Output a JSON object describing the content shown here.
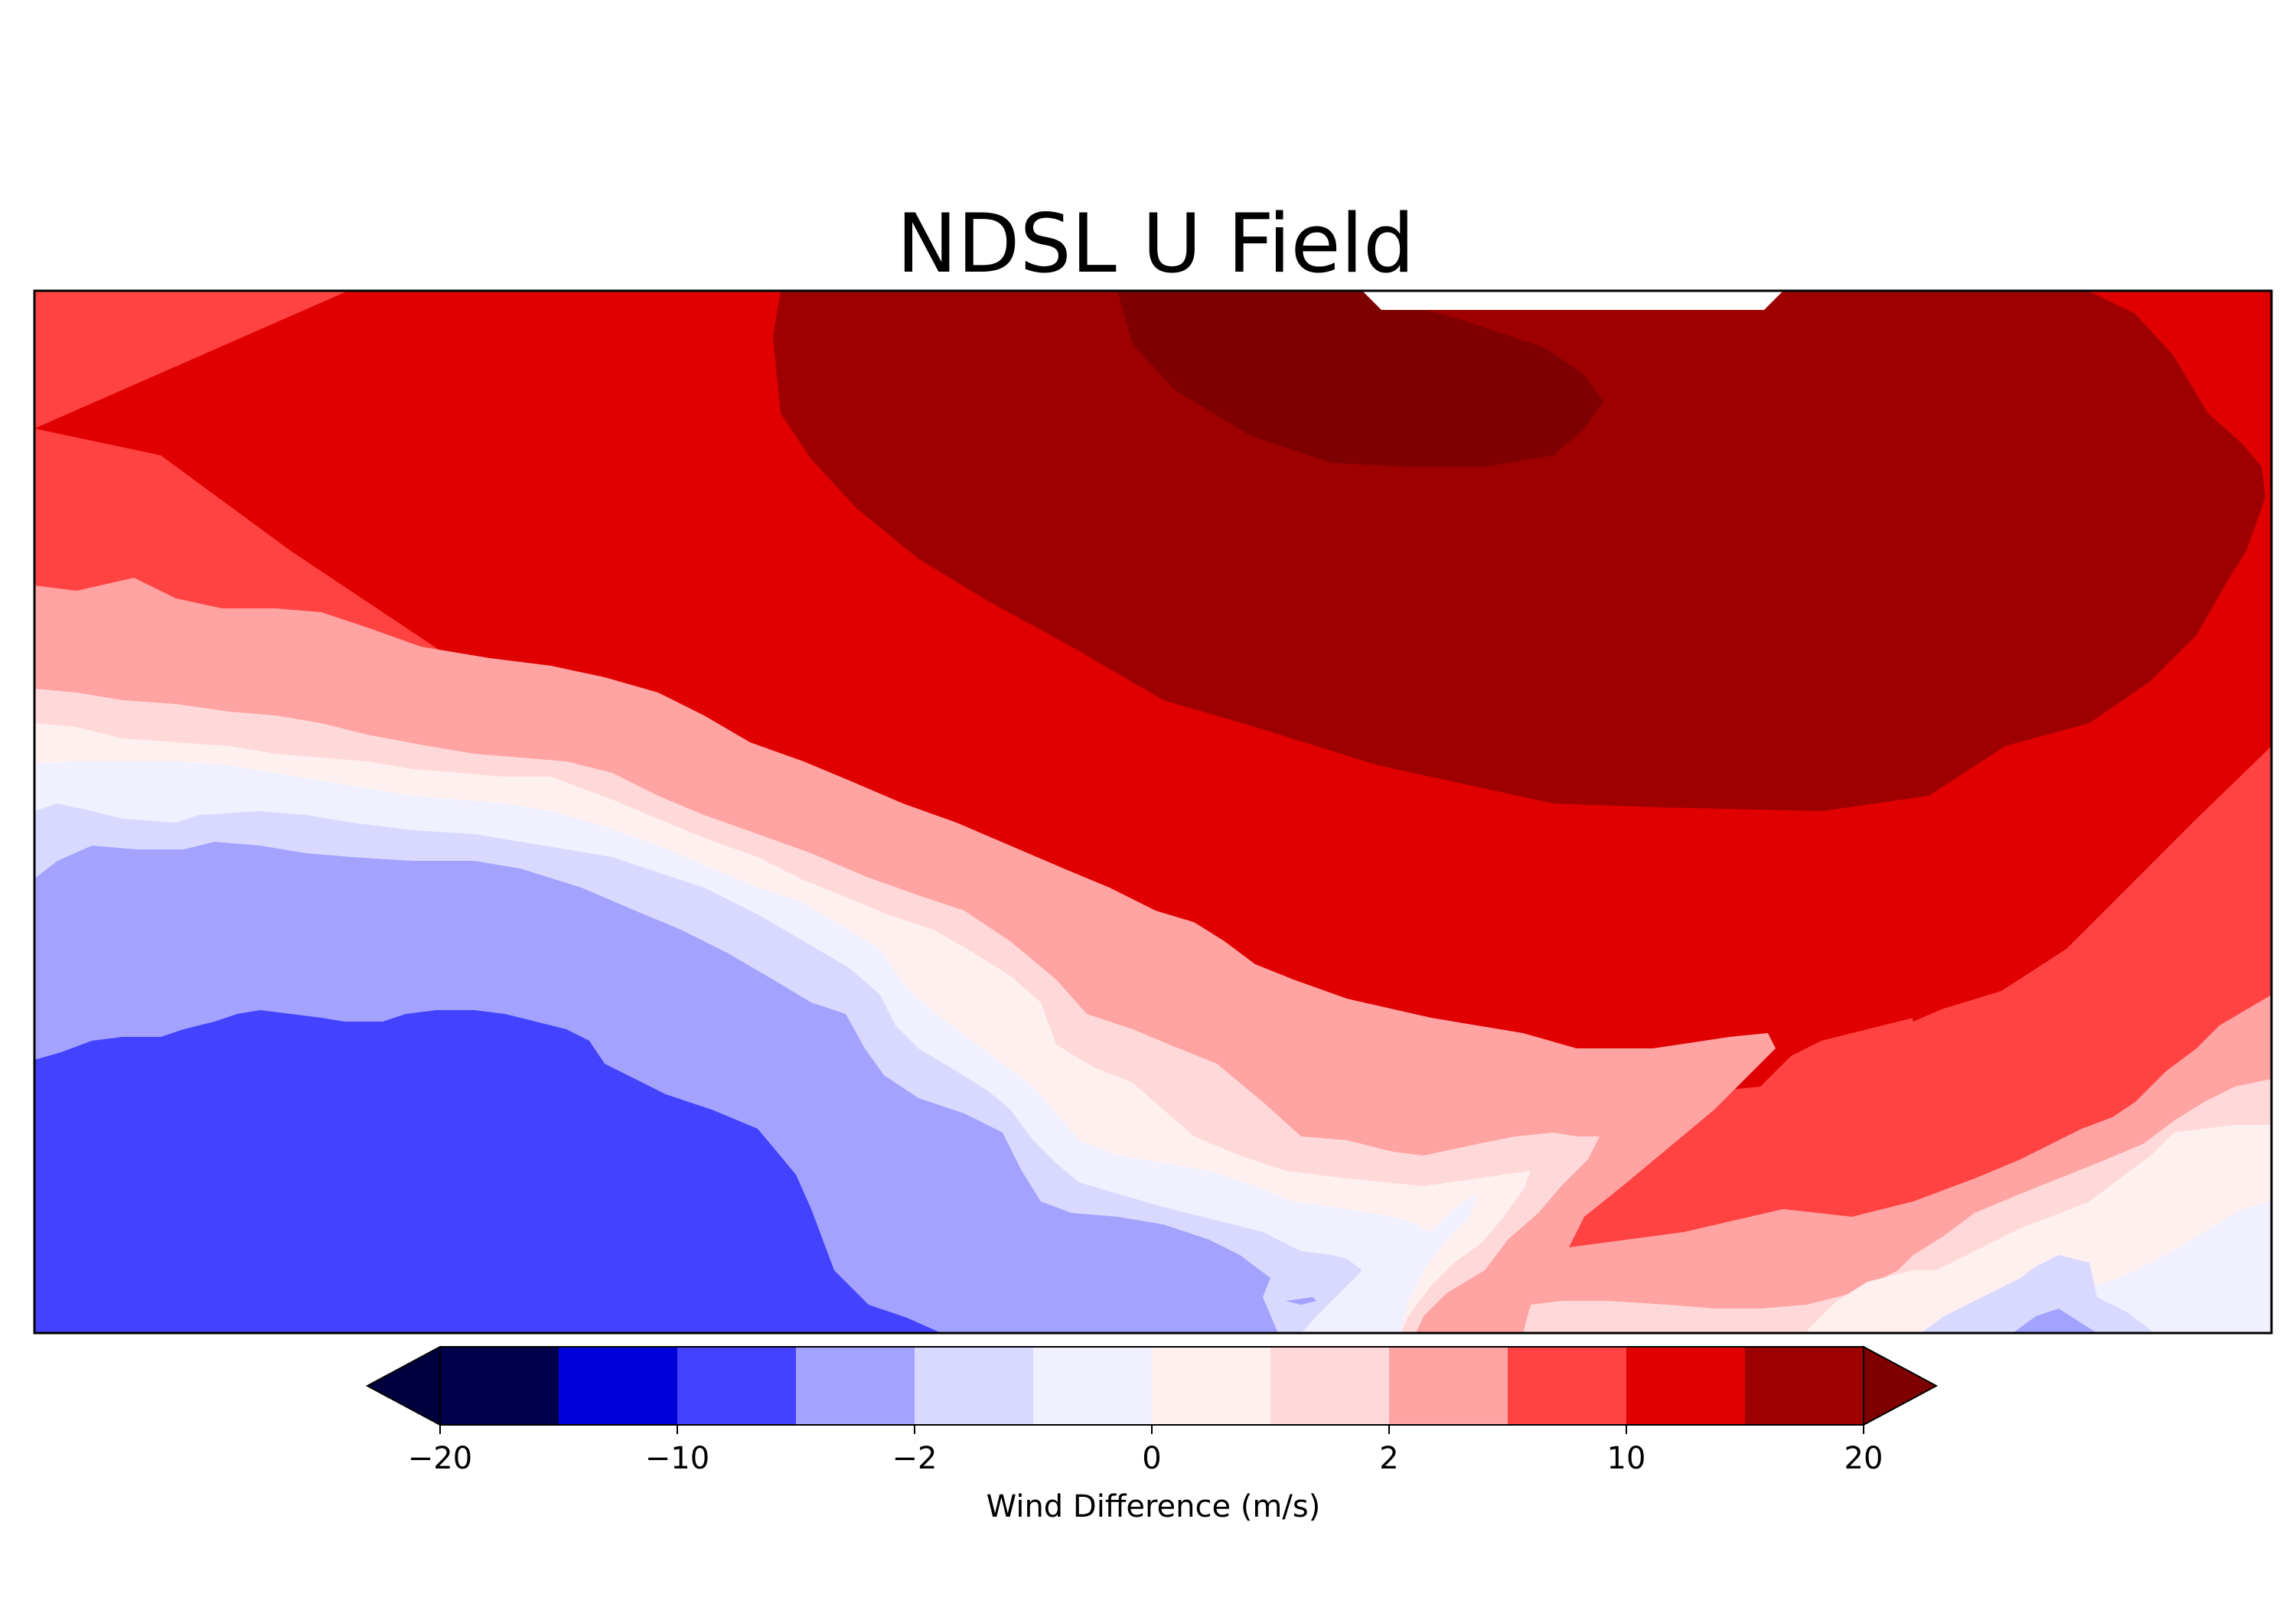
{
  "chart_data": {
    "type": "heatmap",
    "title": "NDSL U Field",
    "xlabel": "",
    "ylabel": "",
    "grid": false,
    "colorbar": {
      "label": "Wind Difference (m/s)",
      "orientation": "horizontal",
      "placement": "bottom",
      "extend": "both",
      "levels": [
        -20,
        -15,
        -10,
        -5,
        -2,
        -1,
        0,
        1,
        2,
        5,
        10,
        15,
        20
      ],
      "colors": [
        "#00004c",
        "#0000da",
        "#4343ff",
        "#a3a3ff",
        "#d9d9ff",
        "#f0f0ff",
        "#fff0f0",
        "#ffd9d9",
        "#ffa3a3",
        "#ff4343",
        "#e00000",
        "#9e0000"
      ],
      "under_color": "#00003f",
      "over_color": "#7f0000",
      "ticks": [
        -20,
        -10,
        -2,
        0,
        2,
        10,
        20
      ],
      "tick_labels": [
        "−20",
        "−10",
        "−2",
        "0",
        "2",
        "10",
        "20"
      ]
    }
  }
}
